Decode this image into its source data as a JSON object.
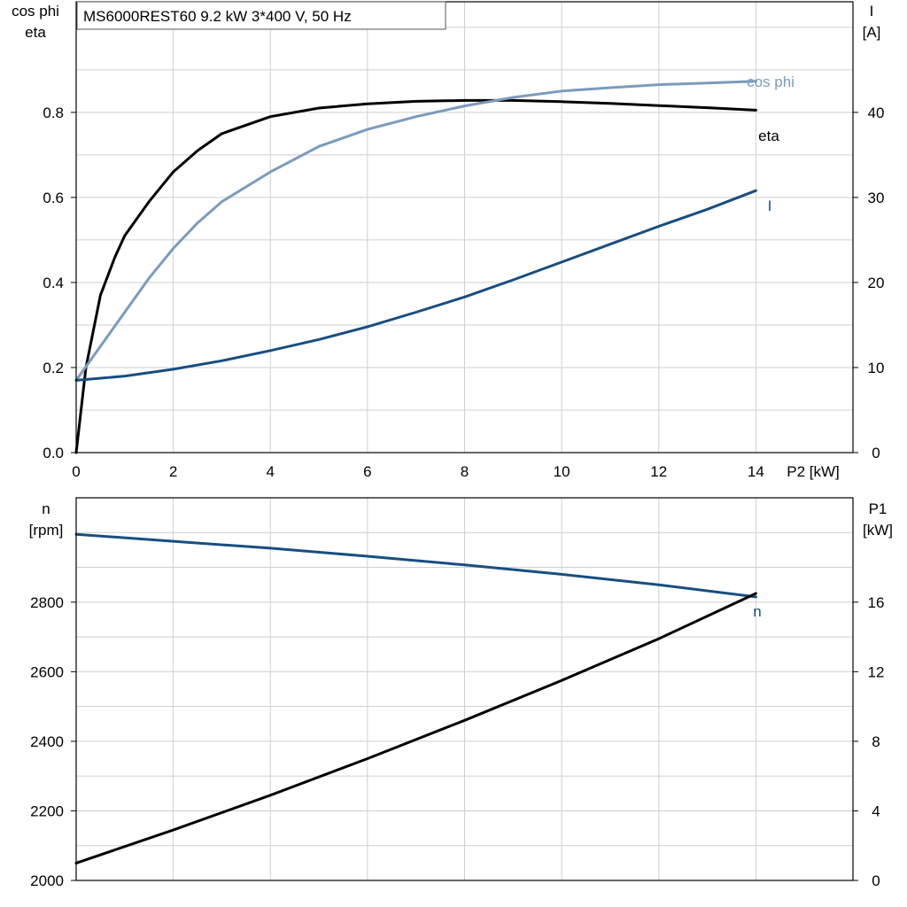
{
  "title": "MS6000REST60   9.2 kW   3*400 V, 50 Hz",
  "colors": {
    "eta": "#000000",
    "cos_phi": "#7a9bbd",
    "I": "#174e80",
    "n": "#174e80",
    "P1": "#000000",
    "grid": "#cfcfcf"
  },
  "chart_data": [
    {
      "type": "line",
      "title": "MS6000REST60   9.2 kW   3*400 V, 50 Hz",
      "xlabel": "P2 [kW]",
      "xlim": [
        0,
        16
      ],
      "x_ticks": [
        "0",
        "2",
        "4",
        "6",
        "8",
        "10",
        "12",
        "14"
      ],
      "left_axis": {
        "label_lines": [
          "cos phi",
          "eta"
        ],
        "ylim": [
          0,
          1.06
        ],
        "ticks": [
          "0.0",
          "0.2",
          "0.4",
          "0.6",
          "0.8"
        ]
      },
      "right_axis": {
        "label_lines": [
          "I",
          "[A]"
        ],
        "ylim": [
          0,
          53
        ],
        "ticks": [
          "0",
          "10",
          "20",
          "30",
          "40"
        ]
      },
      "grid": true,
      "series": [
        {
          "name": "eta",
          "axis": "left",
          "x": [
            0,
            0.2,
            0.5,
            0.8,
            1.0,
            1.5,
            2.0,
            2.5,
            3.0,
            4.0,
            5.0,
            6.0,
            7.0,
            8.0,
            9.0,
            10.0,
            11.0,
            12.0,
            13.0,
            14.0
          ],
          "y": [
            0.0,
            0.2,
            0.37,
            0.46,
            0.51,
            0.59,
            0.66,
            0.71,
            0.75,
            0.79,
            0.81,
            0.82,
            0.826,
            0.828,
            0.828,
            0.825,
            0.821,
            0.816,
            0.811,
            0.805
          ]
        },
        {
          "name": "cos phi",
          "axis": "left",
          "x": [
            0,
            0.5,
            1.0,
            1.5,
            2.0,
            2.5,
            3.0,
            4.0,
            5.0,
            6.0,
            7.0,
            8.0,
            9.0,
            10.0,
            11.0,
            12.0,
            13.0,
            14.0
          ],
          "y": [
            0.17,
            0.25,
            0.33,
            0.41,
            0.48,
            0.54,
            0.59,
            0.66,
            0.72,
            0.76,
            0.79,
            0.815,
            0.835,
            0.85,
            0.858,
            0.865,
            0.869,
            0.873
          ]
        },
        {
          "name": "I",
          "axis": "right",
          "x": [
            0,
            1,
            2,
            3,
            4,
            5,
            6,
            7,
            8,
            9,
            10,
            11,
            12,
            13,
            14
          ],
          "y": [
            8.5,
            9.0,
            9.8,
            10.8,
            12.0,
            13.3,
            14.8,
            16.5,
            18.3,
            20.3,
            22.4,
            24.5,
            26.6,
            28.6,
            30.8
          ]
        }
      ]
    },
    {
      "type": "line",
      "xlim": [
        0,
        16
      ],
      "left_axis": {
        "label_lines": [
          "n",
          "[rpm]"
        ],
        "ylim": [
          2000,
          3100
        ],
        "ticks": [
          "2000",
          "2200",
          "2400",
          "2600",
          "2800"
        ]
      },
      "right_axis": {
        "label_lines": [
          "P1",
          "[kW]"
        ],
        "ylim": [
          0,
          22
        ],
        "ticks": [
          "0",
          "4",
          "8",
          "12",
          "16"
        ]
      },
      "grid": true,
      "series": [
        {
          "name": "n",
          "axis": "left",
          "x": [
            0,
            2,
            4,
            6,
            8,
            10,
            12,
            14
          ],
          "y": [
            2995,
            2975,
            2955,
            2932,
            2907,
            2880,
            2850,
            2815
          ]
        },
        {
          "axis": "right",
          "x": [
            0,
            2,
            4,
            6,
            8,
            10,
            12,
            14
          ],
          "y": [
            1.0,
            2.9,
            4.9,
            7.0,
            9.2,
            11.5,
            13.9,
            16.5
          ]
        }
      ]
    }
  ]
}
